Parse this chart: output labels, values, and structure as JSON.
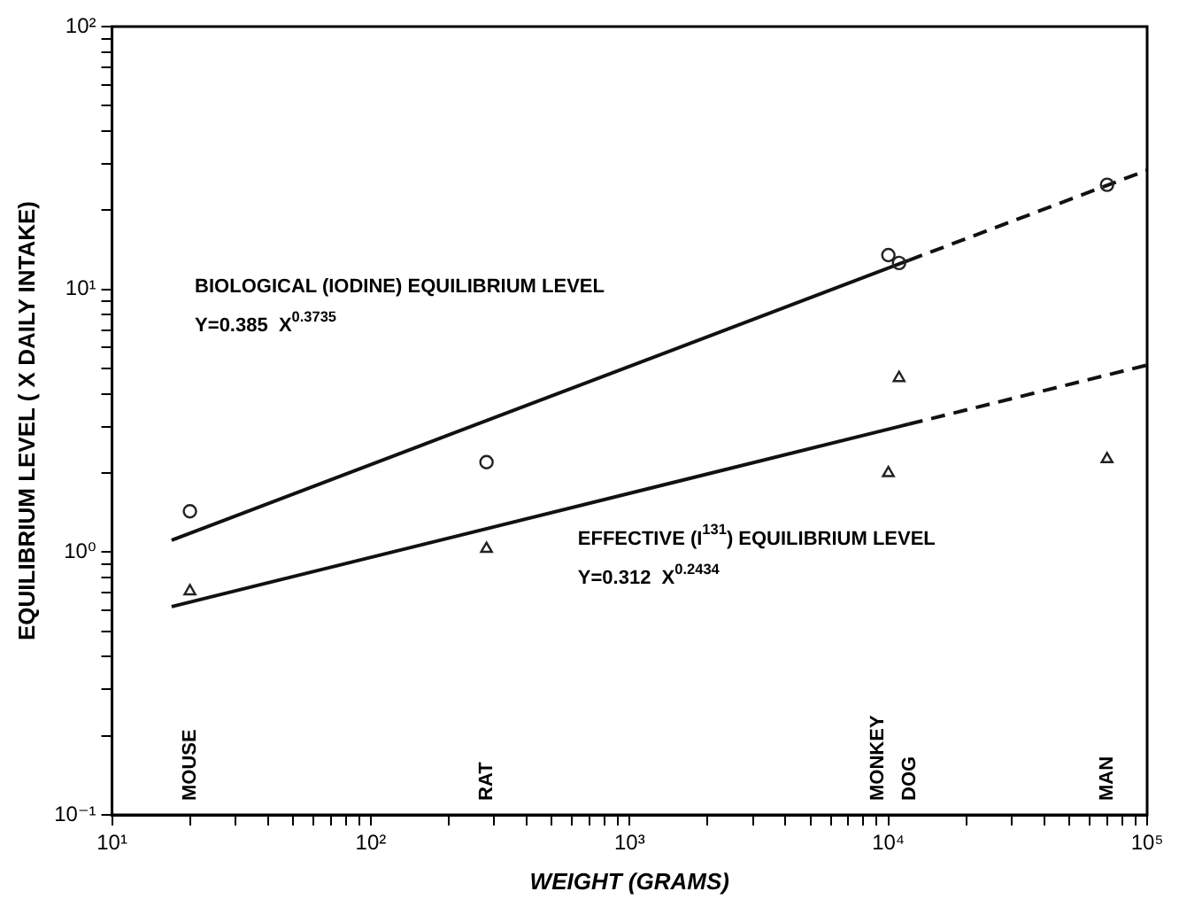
{
  "chart_data": {
    "type": "scatter",
    "xlabel": "WEIGHT (GRAMS)",
    "ylabel": "EQUILIBRIUM LEVEL ( X DAILY INTAKE)",
    "log": "xy",
    "grid": false,
    "legend": false,
    "xlim": [
      10,
      100000
    ],
    "ylim": [
      0.1,
      100
    ],
    "xticks": [
      {
        "value": 10,
        "label": "10¹"
      },
      {
        "value": 20,
        "label": null
      },
      {
        "value": 30,
        "label": null
      },
      {
        "value": 40,
        "label": null
      },
      {
        "value": 50,
        "label": null
      },
      {
        "value": 60,
        "label": null
      },
      {
        "value": 70,
        "label": null
      },
      {
        "value": 80,
        "label": null
      },
      {
        "value": 90,
        "label": null
      },
      {
        "value": 100,
        "label": "10²"
      },
      {
        "value": 200,
        "label": null
      },
      {
        "value": 300,
        "label": null
      },
      {
        "value": 400,
        "label": null
      },
      {
        "value": 500,
        "label": null
      },
      {
        "value": 600,
        "label": null
      },
      {
        "value": 700,
        "label": null
      },
      {
        "value": 800,
        "label": null
      },
      {
        "value": 900,
        "label": null
      },
      {
        "value": 1000,
        "label": "10³"
      },
      {
        "value": 2000,
        "label": null
      },
      {
        "value": 3000,
        "label": null
      },
      {
        "value": 4000,
        "label": null
      },
      {
        "value": 5000,
        "label": null
      },
      {
        "value": 6000,
        "label": null
      },
      {
        "value": 7000,
        "label": null
      },
      {
        "value": 8000,
        "label": null
      },
      {
        "value": 9000,
        "label": null
      },
      {
        "value": 10000,
        "label": "10⁴"
      },
      {
        "value": 20000,
        "label": null
      },
      {
        "value": 30000,
        "label": null
      },
      {
        "value": 40000,
        "label": null
      },
      {
        "value": 50000,
        "label": null
      },
      {
        "value": 60000,
        "label": null
      },
      {
        "value": 70000,
        "label": null
      },
      {
        "value": 80000,
        "label": null
      },
      {
        "value": 90000,
        "label": null
      },
      {
        "value": 100000,
        "label": "10⁵"
      }
    ],
    "yticks": [
      {
        "value": 0.1,
        "label": "10⁻¹"
      },
      {
        "value": 0.2,
        "label": null
      },
      {
        "value": 0.3,
        "label": null
      },
      {
        "value": 0.4,
        "label": null
      },
      {
        "value": 0.5,
        "label": null
      },
      {
        "value": 0.6,
        "label": null
      },
      {
        "value": 0.7,
        "label": null
      },
      {
        "value": 0.8,
        "label": null
      },
      {
        "value": 0.9,
        "label": null
      },
      {
        "value": 1,
        "label": "10⁰"
      },
      {
        "value": 2,
        "label": null
      },
      {
        "value": 3,
        "label": null
      },
      {
        "value": 4,
        "label": null
      },
      {
        "value": 5,
        "label": null
      },
      {
        "value": 6,
        "label": null
      },
      {
        "value": 7,
        "label": null
      },
      {
        "value": 8,
        "label": null
      },
      {
        "value": 9,
        "label": null
      },
      {
        "value": 10,
        "label": "10¹"
      },
      {
        "value": 20,
        "label": null
      },
      {
        "value": 30,
        "label": null
      },
      {
        "value": 40,
        "label": null
      },
      {
        "value": 50,
        "label": null
      },
      {
        "value": 60,
        "label": null
      },
      {
        "value": 70,
        "label": null
      },
      {
        "value": 80,
        "label": null
      },
      {
        "value": 90,
        "label": null
      },
      {
        "value": 100,
        "label": "10²"
      }
    ],
    "series": [
      {
        "type": "scatter",
        "marker": "circle",
        "color": "#222222",
        "x": [
          20,
          280,
          10000,
          11000,
          70000
        ],
        "values": [
          1.43,
          2.2,
          13.5,
          12.6,
          25
        ]
      },
      {
        "type": "scatter",
        "marker": "triangle",
        "color": "#222222",
        "x": [
          20,
          280,
          10000,
          11000,
          70000
        ],
        "values": [
          0.71,
          1.03,
          2.0,
          4.6,
          2.26
        ]
      },
      {
        "type": "line",
        "marker": "none",
        "line_style": "solid",
        "color": "#111111",
        "x": [
          17,
          12000
        ],
        "values": [
          1.11,
          12.9
        ]
      },
      {
        "type": "line",
        "marker": "none",
        "line_style": "dashed",
        "color": "#111111",
        "x": [
          12000,
          100000
        ],
        "values": [
          12.9,
          28.4
        ]
      },
      {
        "type": "line",
        "marker": "none",
        "line_style": "solid",
        "color": "#111111",
        "x": [
          17,
          12000
        ],
        "values": [
          0.62,
          3.07
        ]
      },
      {
        "type": "line",
        "marker": "none",
        "line_style": "dashed",
        "color": "#111111",
        "x": [
          12000,
          100000
        ],
        "values": [
          3.07,
          5.15
        ]
      }
    ],
    "annotations": [
      "BIOLOGICAL (IODINE) EQUILIBRIUM LEVEL",
      "Y=0.385  X$^{0.3735}$",
      "EFFECTIVE (I$^{131}$) EQUILIBRIUM LEVEL",
      "Y=0.312  X$^{0.2434}$",
      "MOUSE",
      "RAT",
      "MONKEY",
      "DOG",
      "MAN"
    ]
  }
}
